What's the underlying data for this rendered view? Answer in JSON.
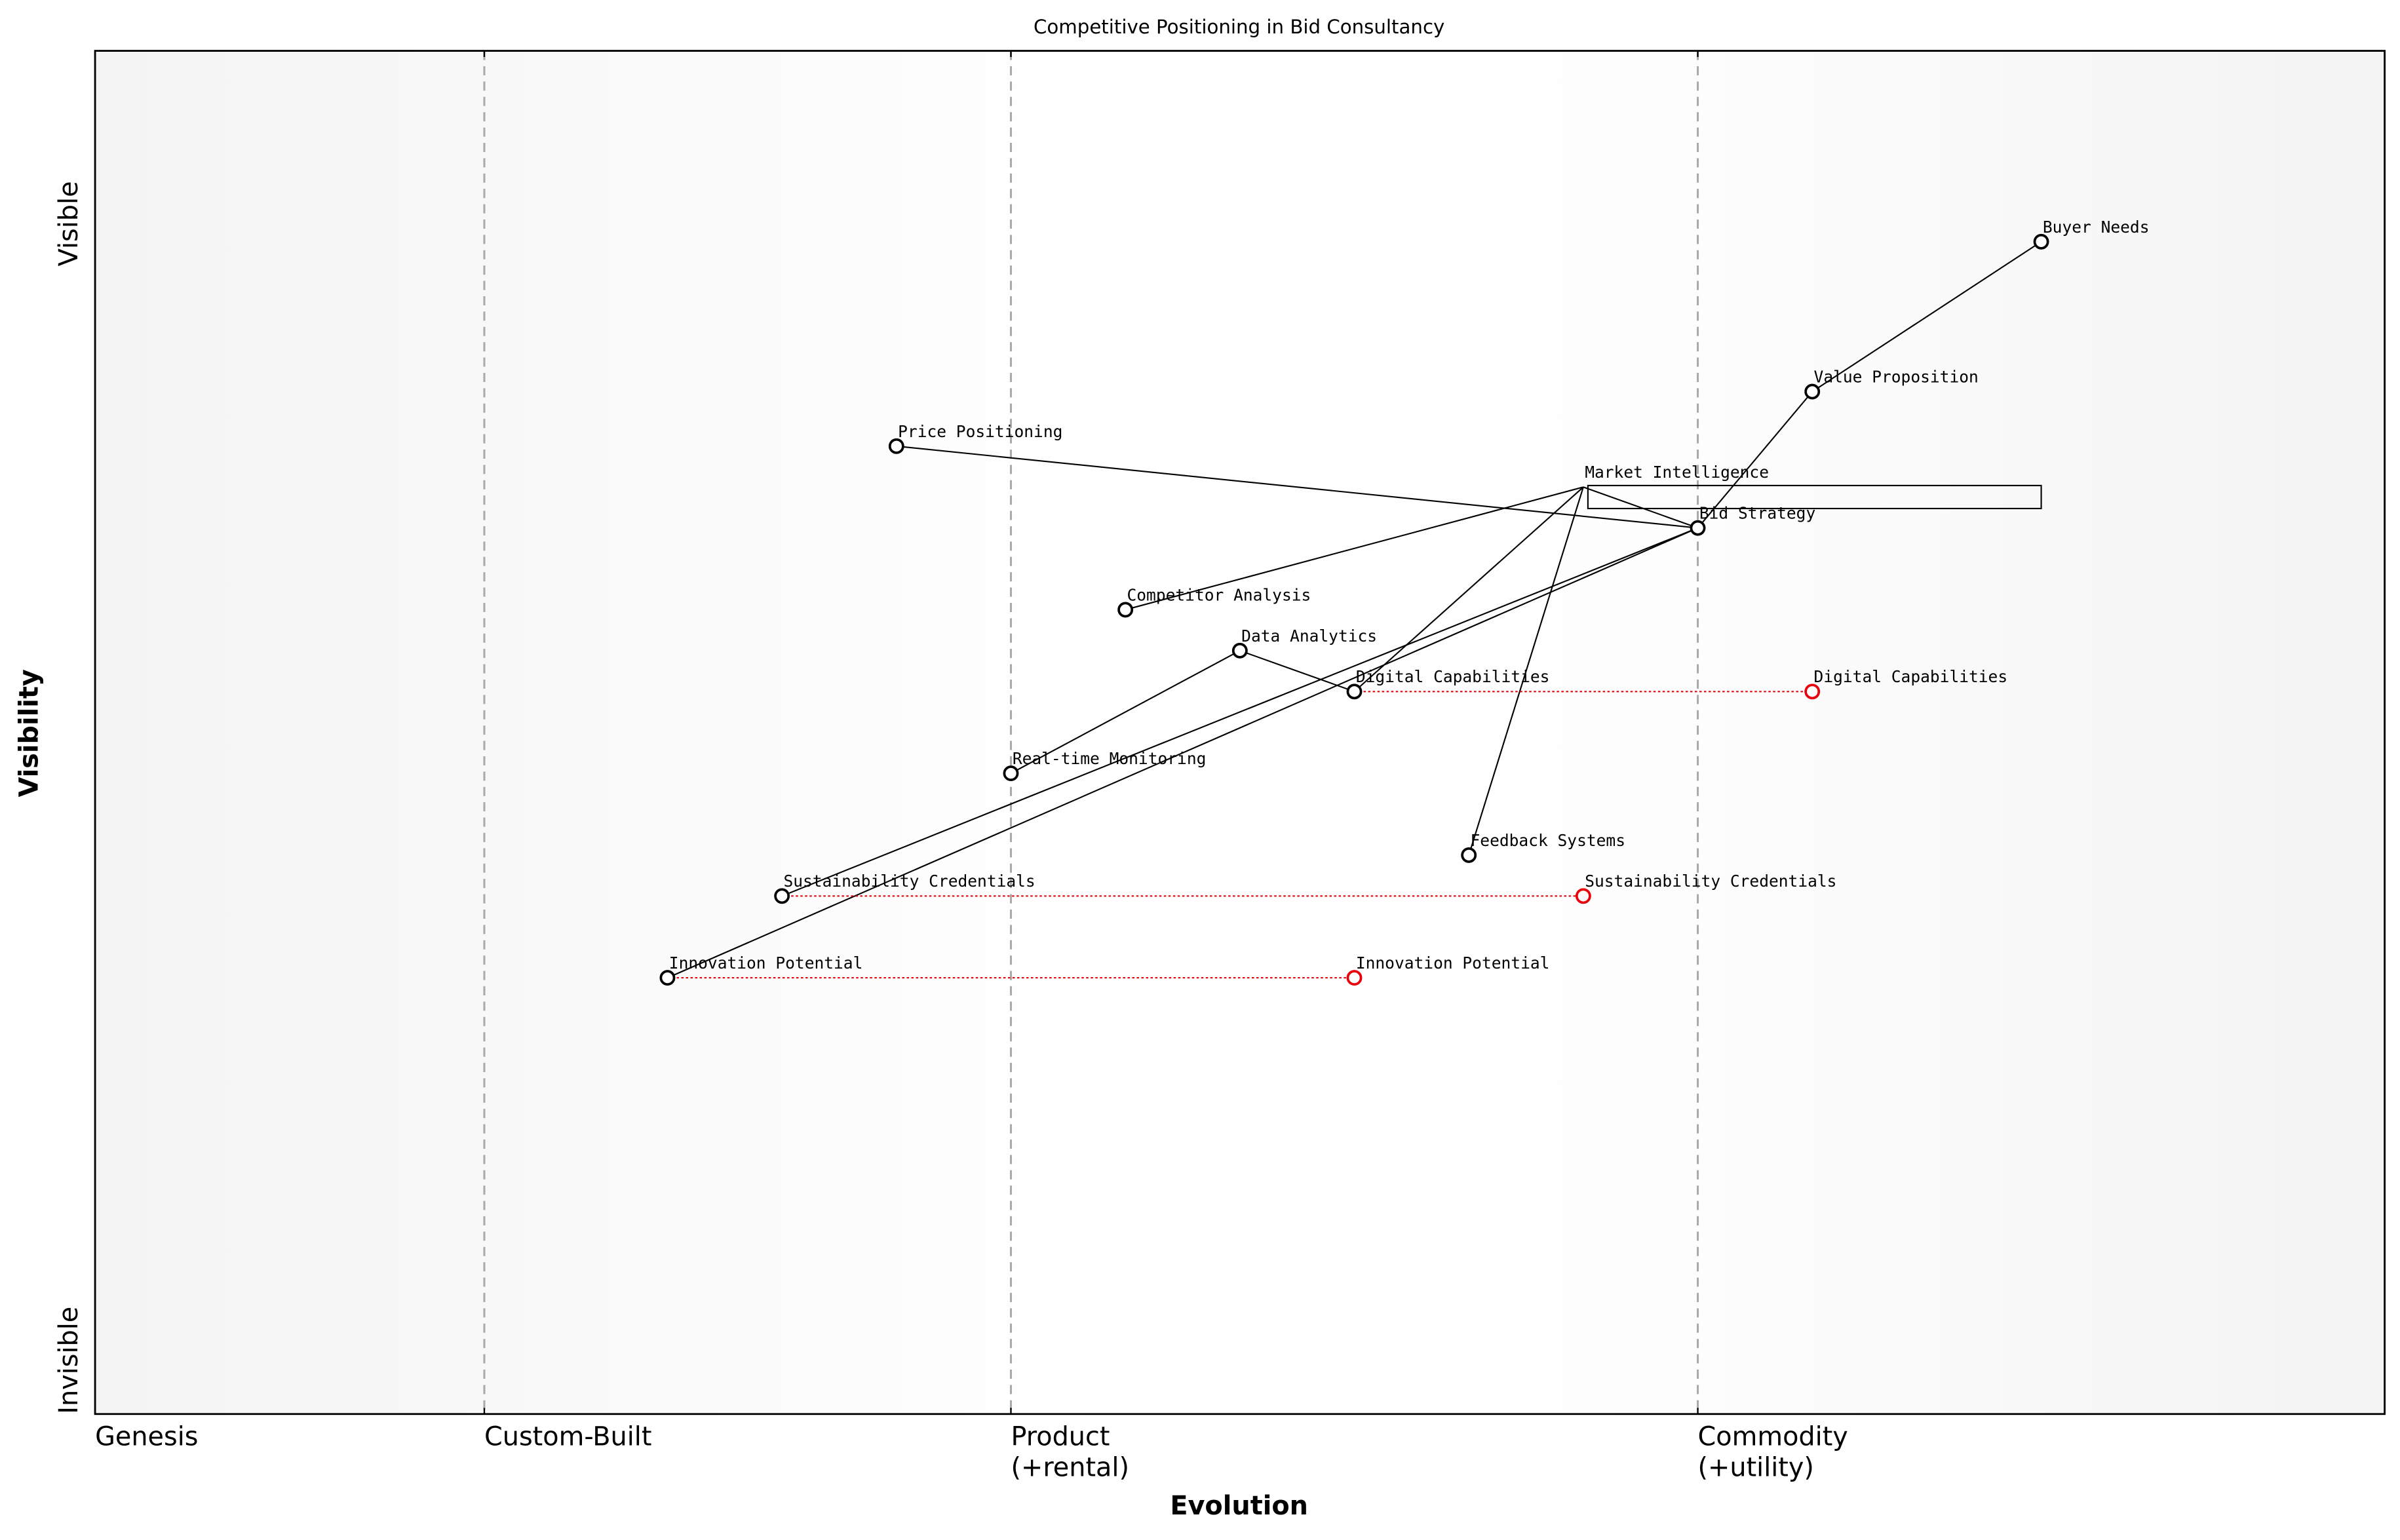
{
  "chart_data": {
    "type": "wardley",
    "title": "Competitive Positioning in Bid Consultancy",
    "xlabel": "Evolution",
    "ylabel": "Visibility",
    "y_top_label": "Visible",
    "y_bottom_label": "Invisible",
    "xlim": [
      0,
      1
    ],
    "ylim": [
      0,
      1
    ],
    "xticks": [
      {
        "value": 0,
        "label": [
          "Genesis"
        ]
      },
      {
        "value": 0.17,
        "label": [
          "Custom-Built"
        ]
      },
      {
        "value": 0.4,
        "label": [
          "Product",
          "(+rental)"
        ]
      },
      {
        "value": 0.7,
        "label": [
          "Commodity",
          "(+utility)"
        ]
      }
    ],
    "components": [
      {
        "name": "Buyer Needs",
        "x": 0.85,
        "y": 0.86
      },
      {
        "name": "Value Proposition",
        "x": 0.75,
        "y": 0.75
      },
      {
        "name": "Price Positioning",
        "x": 0.35,
        "y": 0.71
      },
      {
        "name": "Market Intelligence",
        "x": 0.65,
        "y": 0.68,
        "pipeline_end": 0.85
      },
      {
        "name": "Bid Strategy",
        "x": 0.7,
        "y": 0.65
      },
      {
        "name": "Competitor Analysis",
        "x": 0.45,
        "y": 0.59
      },
      {
        "name": "Data Analytics",
        "x": 0.5,
        "y": 0.56
      },
      {
        "name": "Digital Capabilities",
        "x": 0.55,
        "y": 0.53
      },
      {
        "name": "Real-time Monitoring",
        "x": 0.4,
        "y": 0.47
      },
      {
        "name": "Feedback Systems",
        "x": 0.6,
        "y": 0.41
      },
      {
        "name": "Sustainability Credentials",
        "x": 0.3,
        "y": 0.38
      },
      {
        "name": "Innovation Potential",
        "x": 0.25,
        "y": 0.32
      }
    ],
    "links": [
      [
        "Buyer Needs",
        "Value Proposition"
      ],
      [
        "Value Proposition",
        "Bid Strategy"
      ],
      [
        "Price Positioning",
        "Bid Strategy"
      ],
      [
        "Bid Strategy",
        "Market Intelligence"
      ],
      [
        "Bid Strategy",
        "Sustainability Credentials"
      ],
      [
        "Bid Strategy",
        "Innovation Potential"
      ],
      [
        "Market Intelligence",
        "Competitor Analysis"
      ],
      [
        "Market Intelligence",
        "Digital Capabilities"
      ],
      [
        "Market Intelligence",
        "Feedback Systems"
      ],
      [
        "Data Analytics",
        "Real-time Monitoring"
      ],
      [
        "Data Analytics",
        "Digital Capabilities"
      ]
    ],
    "evolutions": [
      {
        "name": "Digital Capabilities",
        "x": 0.75,
        "color": "#e8000b"
      },
      {
        "name": "Sustainability Credentials",
        "x": 0.65,
        "color": "#e8000b"
      },
      {
        "name": "Innovation Potential",
        "x": 0.55,
        "color": "#e8000b"
      }
    ],
    "grid": true
  }
}
